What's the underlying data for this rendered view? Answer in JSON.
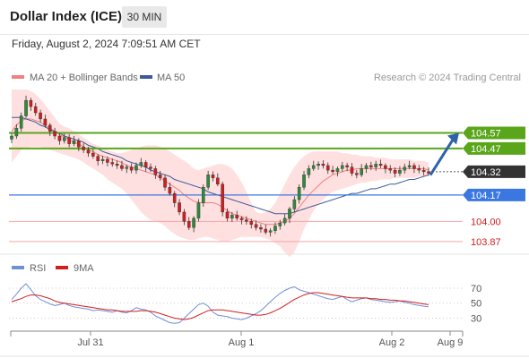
{
  "header": {
    "title": "Dollar Index (ICE)",
    "timeframe": "30 MIN",
    "datetime": "Friday, August 2, 2024 7:09:51 AM CET"
  },
  "legend": {
    "ma20": "MA 20 + Bollinger Bands",
    "ma50": "MA 50",
    "credit": "Research © 2024 Trading Central",
    "rsi": "RSI",
    "rsi_ma": "9MA"
  },
  "colors": {
    "bullish": "#2e8b3b",
    "bearish": "#d11e1e",
    "ma20": "#f08080",
    "band": "#ffd5d5",
    "ma50": "#3a5a9a",
    "resistance": "#5aa61a",
    "pivot": "#3a78e0",
    "support": "#f4a7a7",
    "current": "#333333",
    "arrow": "#2d63a8",
    "rsi": "#6f8fd6",
    "rsi_ma": "#d11e1e"
  },
  "chart_data": [
    {
      "type": "candlestick",
      "y_range": [
        103.8,
        104.85
      ],
      "x_ticks": [
        "Jul 31",
        "Aug 1",
        "Aug 2",
        "Aug 9"
      ],
      "levels": [
        {
          "value": 104.57,
          "label": "104.57",
          "kind": "resistance"
        },
        {
          "value": 104.47,
          "label": "104.47",
          "kind": "resistance"
        },
        {
          "value": 104.32,
          "label": "104.32",
          "kind": "current"
        },
        {
          "value": 104.17,
          "label": "104.17",
          "kind": "pivot"
        },
        {
          "value": 104.0,
          "label": "104.00",
          "kind": "support"
        },
        {
          "value": 103.87,
          "label": "103.87",
          "kind": "support"
        }
      ],
      "close": [
        104.55,
        104.6,
        104.68,
        104.78,
        104.74,
        104.7,
        104.66,
        104.62,
        104.58,
        104.55,
        104.52,
        104.54,
        104.5,
        104.52,
        104.48,
        104.46,
        104.44,
        104.42,
        104.39,
        104.4,
        104.38,
        104.37,
        104.36,
        104.34,
        104.35,
        104.33,
        104.36,
        104.38,
        104.35,
        104.34,
        104.3,
        104.28,
        104.22,
        104.18,
        104.12,
        104.06,
        104,
        103.96,
        104.02,
        104.12,
        104.22,
        104.3,
        104.28,
        104.24,
        104.06,
        104.02,
        104.04,
        104.02,
        104.01,
        104,
        103.98,
        103.96,
        103.95,
        103.93,
        103.94,
        103.97,
        103.99,
        104.02,
        104.08,
        104.14,
        104.22,
        104.3,
        104.34,
        104.36,
        104.37,
        104.36,
        104.33,
        104.32,
        104.34,
        104.36,
        104.35,
        104.31,
        104.3,
        104.34,
        104.36,
        104.35,
        104.37,
        104.36,
        104.34,
        104.33,
        104.31,
        104.33,
        104.35,
        104.36,
        104.34,
        104.33,
        104.32,
        104.31
      ],
      "ma20": [
        104.58,
        104.62,
        104.65,
        104.66,
        104.66,
        104.65,
        104.64,
        104.62,
        104.6,
        104.58,
        104.56,
        104.54,
        104.53,
        104.51,
        104.5,
        104.48,
        104.46,
        104.45,
        104.43,
        104.42,
        104.41,
        104.4,
        104.39,
        104.38,
        104.36,
        104.35,
        104.34,
        104.33,
        104.32,
        104.31,
        104.3,
        104.28,
        104.26,
        104.24,
        104.22,
        104.2,
        104.17,
        104.15,
        104.13,
        104.12,
        104.12,
        104.12,
        104.12,
        104.11,
        104.09,
        104.07,
        104.05,
        104.04,
        104.03,
        104.02,
        104.01,
        104,
        103.99,
        103.98,
        103.98,
        103.98,
        103.99,
        104,
        104.02,
        104.05,
        104.09,
        104.13,
        104.17,
        104.2,
        104.23,
        104.26,
        104.28,
        104.3,
        104.31,
        104.32,
        104.33,
        104.33,
        104.34,
        104.34,
        104.34,
        104.34,
        104.34,
        104.34,
        104.34,
        104.34,
        104.34,
        104.34,
        104.34,
        104.34,
        104.34,
        104.34,
        104.34,
        104.33
      ],
      "band_upper": [
        104.85,
        104.85,
        104.85,
        104.85,
        104.84,
        104.82,
        104.79,
        104.75,
        104.71,
        104.67,
        104.63,
        104.61,
        104.6,
        104.58,
        104.56,
        104.54,
        104.52,
        104.5,
        104.49,
        104.47,
        104.46,
        104.45,
        104.44,
        104.44,
        104.45,
        104.46,
        104.47,
        104.48,
        104.49,
        104.49,
        104.49,
        104.48,
        104.47,
        104.45,
        104.43,
        104.41,
        104.39,
        104.37,
        104.34,
        104.33,
        104.34,
        104.35,
        104.36,
        104.37,
        104.37,
        104.36,
        104.34,
        104.3,
        104.25,
        104.19,
        104.12,
        104.06,
        104.05,
        104.06,
        104.08,
        104.12,
        104.18,
        104.24,
        104.3,
        104.35,
        104.39,
        104.42,
        104.44,
        104.45,
        104.45,
        104.45,
        104.45,
        104.45,
        104.45,
        104.44,
        104.44,
        104.43,
        104.43,
        104.42,
        104.42,
        104.42,
        104.41,
        104.41,
        104.41,
        104.4,
        104.4,
        104.4,
        104.4,
        104.4,
        104.39,
        104.39,
        104.39,
        104.38
      ],
      "band_lower": [
        104.38,
        104.42,
        104.46,
        104.47,
        104.48,
        104.48,
        104.48,
        104.47,
        104.46,
        104.45,
        104.44,
        104.43,
        104.42,
        104.41,
        104.4,
        104.38,
        104.36,
        104.34,
        104.32,
        104.3,
        104.27,
        104.25,
        104.23,
        104.21,
        104.18,
        104.14,
        104.1,
        104.06,
        104.03,
        104.01,
        104,
        103.99,
        103.97,
        103.94,
        103.92,
        103.9,
        103.89,
        103.88,
        103.88,
        103.89,
        103.9,
        103.9,
        103.89,
        103.88,
        103.87,
        103.87,
        103.88,
        103.89,
        103.9,
        103.9,
        103.9,
        103.9,
        103.9,
        103.89,
        103.88,
        103.86,
        103.84,
        103.8,
        103.77,
        103.8,
        103.87,
        103.95,
        104.01,
        104.07,
        104.11,
        104.14,
        104.17,
        104.19,
        104.2,
        104.21,
        104.22,
        104.23,
        104.24,
        104.25,
        104.25,
        104.26,
        104.26,
        104.27,
        104.27,
        104.27,
        104.28,
        104.28,
        104.28,
        104.28,
        104.28,
        104.29,
        104.29,
        104.29
      ],
      "ma50": [
        104.67,
        104.67,
        104.67,
        104.66,
        104.65,
        104.64,
        104.62,
        104.61,
        104.59,
        104.58,
        104.57,
        104.55,
        104.54,
        104.53,
        104.52,
        104.51,
        104.49,
        104.48,
        104.47,
        104.45,
        104.44,
        104.43,
        104.42,
        104.41,
        104.39,
        104.38,
        104.37,
        104.36,
        104.35,
        104.33,
        104.32,
        104.31,
        104.3,
        104.29,
        104.27,
        104.26,
        104.25,
        104.24,
        104.23,
        104.22,
        104.21,
        104.19,
        104.18,
        104.17,
        104.16,
        104.15,
        104.14,
        104.13,
        104.12,
        104.11,
        104.1,
        104.09,
        104.08,
        104.07,
        104.06,
        104.05,
        104.05,
        104.05,
        104.05,
        104.06,
        104.07,
        104.08,
        104.09,
        104.1,
        104.11,
        104.12,
        104.13,
        104.14,
        104.15,
        104.16,
        104.17,
        104.18,
        104.18,
        104.19,
        104.2,
        104.21,
        104.21,
        104.22,
        104.23,
        104.24,
        104.24,
        104.25,
        104.26,
        104.27,
        104.27,
        104.28,
        104.29,
        104.3
      ]
    },
    {
      "type": "line",
      "y_range": [
        15,
        82
      ],
      "y_ticks": [
        70,
        50,
        30
      ],
      "series": [
        {
          "name": "RSI",
          "values": [
            55,
            62,
            70,
            76,
            68,
            60,
            55,
            52,
            49,
            47,
            48,
            50,
            47,
            45,
            44,
            43,
            42,
            40,
            41,
            40,
            39,
            38,
            40,
            38,
            37,
            40,
            44,
            42,
            41,
            38,
            33,
            30,
            27,
            24,
            23,
            24,
            30,
            36,
            42,
            48,
            50,
            46,
            38,
            34,
            33,
            32,
            30,
            29,
            28,
            30,
            33,
            36,
            40,
            46,
            52,
            58,
            63,
            67,
            70,
            72,
            68,
            66,
            64,
            62,
            60,
            58,
            56,
            55,
            57,
            59,
            55,
            52,
            54,
            56,
            57,
            55,
            54,
            53,
            52,
            51,
            52,
            53,
            51,
            50,
            48,
            47,
            46,
            45
          ]
        },
        {
          "name": "9MA",
          "values": [
            52,
            54,
            56,
            59,
            61,
            61,
            60,
            58,
            56,
            53,
            51,
            50,
            49,
            48,
            47,
            46,
            45,
            44,
            43,
            42,
            41,
            41,
            40,
            39,
            39,
            39,
            39,
            40,
            40,
            39,
            38,
            36,
            34,
            32,
            30,
            29,
            28,
            29,
            31,
            34,
            37,
            40,
            41,
            41,
            41,
            40,
            39,
            38,
            37,
            36,
            35,
            34,
            34,
            35,
            37,
            40,
            43,
            47,
            51,
            55,
            58,
            61,
            63,
            64,
            64,
            63,
            62,
            61,
            60,
            59,
            58,
            57,
            57,
            57,
            57,
            56,
            56,
            55,
            55,
            54,
            54,
            53,
            53,
            52,
            51,
            50,
            49,
            48
          ]
        }
      ]
    }
  ]
}
